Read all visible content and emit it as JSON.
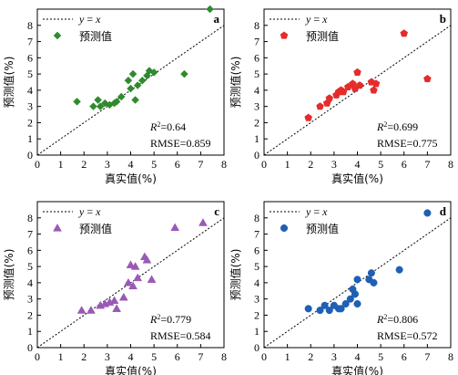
{
  "shared": {
    "xlabel": "真实值(%)",
    "ylabel": "预测值(%)",
    "legend_line_label": "y = x",
    "legend_marker_label": "预测值",
    "xlim": [
      0,
      8
    ],
    "ylim": [
      0,
      9
    ],
    "xticks": [
      "0",
      "1",
      "2",
      "3",
      "4",
      "5",
      "6",
      "7",
      "8"
    ],
    "yticks": [
      "0",
      "1",
      "2",
      "3",
      "4",
      "5",
      "6",
      "7",
      "8"
    ],
    "reference_line": "dotted y = x"
  },
  "chart_data": [
    {
      "type": "scatter",
      "panel": "a",
      "marker": "diamond",
      "color": "#2e8b2e",
      "r2_label": "R",
      "r2_value": "=0.64",
      "rmse_text": "RMSE=0.859",
      "points": [
        [
          1.7,
          3.3
        ],
        [
          2.4,
          3.0
        ],
        [
          2.6,
          3.4
        ],
        [
          2.7,
          3.0
        ],
        [
          2.9,
          3.2
        ],
        [
          3.1,
          3.1
        ],
        [
          3.3,
          3.2
        ],
        [
          3.4,
          3.3
        ],
        [
          3.6,
          3.6
        ],
        [
          3.9,
          4.6
        ],
        [
          4.0,
          4.1
        ],
        [
          4.1,
          5.0
        ],
        [
          4.2,
          3.4
        ],
        [
          4.3,
          4.3
        ],
        [
          4.5,
          4.6
        ],
        [
          4.7,
          4.9
        ],
        [
          4.8,
          5.2
        ],
        [
          5.0,
          5.1
        ],
        [
          6.3,
          5.0
        ],
        [
          7.4,
          9.0
        ]
      ]
    },
    {
      "type": "scatter",
      "panel": "b",
      "marker": "pentagon",
      "color": "#e52b2b",
      "r2_label": "R",
      "r2_value": "=0.699",
      "rmse_text": "RMSE=0.775",
      "points": [
        [
          1.9,
          2.3
        ],
        [
          2.4,
          3.0
        ],
        [
          2.7,
          3.2
        ],
        [
          2.8,
          3.5
        ],
        [
          3.1,
          3.7
        ],
        [
          3.2,
          3.9
        ],
        [
          3.3,
          4.0
        ],
        [
          3.4,
          3.9
        ],
        [
          3.6,
          4.2
        ],
        [
          3.8,
          4.4
        ],
        [
          3.9,
          4.1
        ],
        [
          4.0,
          5.1
        ],
        [
          4.1,
          4.3
        ],
        [
          4.6,
          4.5
        ],
        [
          4.7,
          4.0
        ],
        [
          4.8,
          4.4
        ],
        [
          6.0,
          7.5
        ],
        [
          7.0,
          4.7
        ]
      ]
    },
    {
      "type": "scatter",
      "panel": "c",
      "marker": "triangle",
      "color": "#9b59b6",
      "r2_label": "R",
      "r2_value": "=0.779",
      "rmse_text": "RMSE=0.584",
      "points": [
        [
          1.9,
          2.3
        ],
        [
          2.3,
          2.3
        ],
        [
          2.7,
          2.6
        ],
        [
          2.9,
          2.7
        ],
        [
          3.1,
          2.8
        ],
        [
          3.3,
          2.9
        ],
        [
          3.4,
          2.4
        ],
        [
          3.7,
          3.1
        ],
        [
          3.9,
          4.0
        ],
        [
          4.0,
          5.1
        ],
        [
          4.1,
          3.8
        ],
        [
          4.2,
          5.0
        ],
        [
          4.3,
          4.3
        ],
        [
          4.6,
          5.6
        ],
        [
          4.7,
          5.4
        ],
        [
          4.9,
          4.2
        ],
        [
          5.9,
          7.4
        ],
        [
          7.1,
          7.7
        ]
      ]
    },
    {
      "type": "scatter",
      "panel": "d",
      "marker": "circle",
      "color": "#1f5fb4",
      "r2_label": "R",
      "r2_value": "=0.806",
      "rmse_text": "RMSE=0.572",
      "points": [
        [
          1.9,
          2.4
        ],
        [
          2.4,
          2.3
        ],
        [
          2.6,
          2.6
        ],
        [
          2.8,
          2.3
        ],
        [
          3.0,
          2.6
        ],
        [
          3.2,
          2.4
        ],
        [
          3.3,
          2.4
        ],
        [
          3.5,
          2.7
        ],
        [
          3.7,
          3.0
        ],
        [
          3.8,
          3.6
        ],
        [
          3.9,
          3.3
        ],
        [
          4.0,
          4.2
        ],
        [
          4.0,
          2.7
        ],
        [
          4.5,
          4.2
        ],
        [
          4.6,
          4.6
        ],
        [
          4.7,
          4.0
        ],
        [
          5.8,
          4.8
        ],
        [
          7.0,
          8.3
        ]
      ]
    }
  ]
}
